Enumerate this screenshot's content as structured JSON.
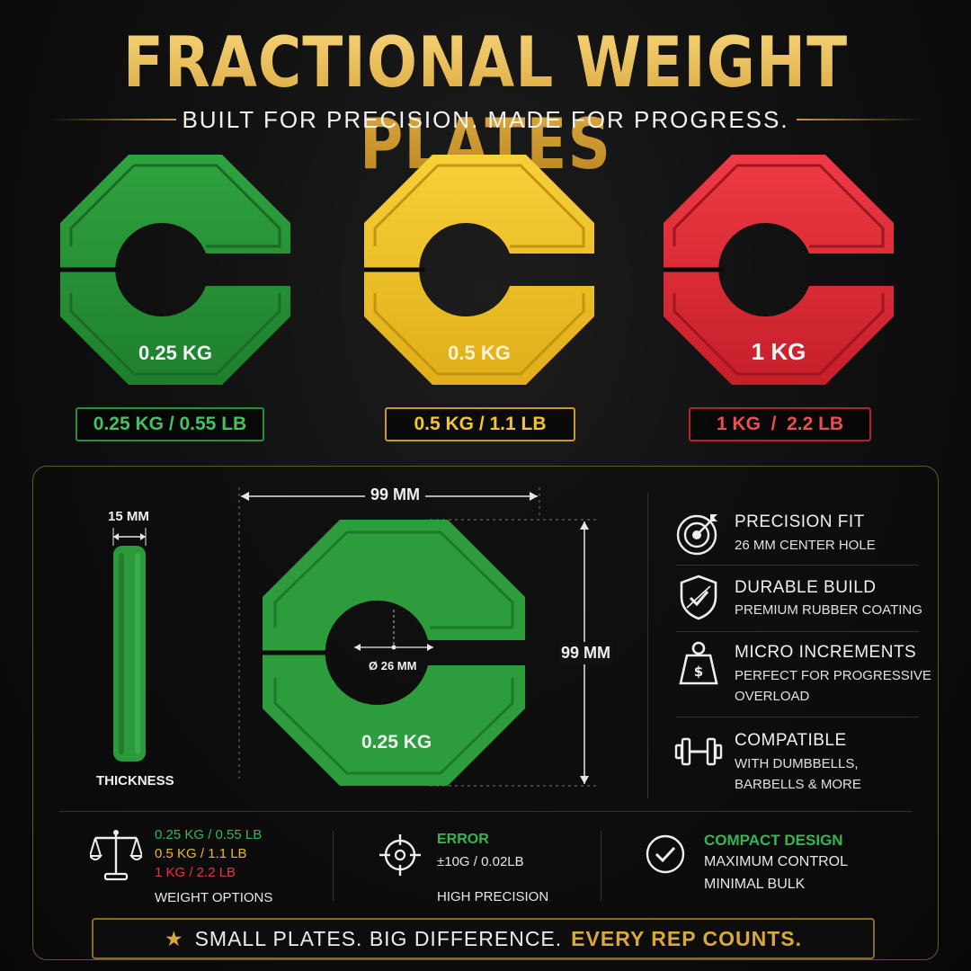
{
  "header": {
    "title": "FRACTIONAL WEIGHT PLATES",
    "subtitle": "BUILT FOR PRECISION. MADE FOR PROGRESS."
  },
  "colors": {
    "gold": "#d9a63c",
    "green": "#2d9a3c",
    "yellow": "#f2c530",
    "red": "#e0303a"
  },
  "plates": [
    {
      "label": "0.25 KG",
      "pill": "0.25 KG / 0.55 LB",
      "color": "green"
    },
    {
      "label": "0.5 KG",
      "pill": "0.5 KG / 1.1 LB",
      "color": "yellow"
    },
    {
      "label": "1 KG",
      "pill": "1 KG  /  2.2 LB",
      "color": "red"
    }
  ],
  "dimensions": {
    "thickness_value": "15 MM",
    "thickness_label": "THICKNESS",
    "width": "99 MM",
    "height": "99 MM",
    "hole": "Ø 26 MM",
    "plate_label": "0.25 KG"
  },
  "features": [
    {
      "icon": "target-icon",
      "title": "PRECISION FIT",
      "sub": "26 MM CENTER HOLE"
    },
    {
      "icon": "shield-icon",
      "title": "DURABLE BUILD",
      "sub": "PREMIUM RUBBER COATING"
    },
    {
      "icon": "weight-icon",
      "title": "MICRO INCREMENTS",
      "sub": "PERFECT FOR PROGRESSIVE",
      "sub2": "OVERLOAD"
    },
    {
      "icon": "dumbbell-icon",
      "title": "COMPATIBLE",
      "sub": "WITH DUMBBELLS,",
      "sub2": "BARBELLS & MORE"
    }
  ],
  "stats": {
    "weights": {
      "line1": "0.25 KG / 0.55 LB",
      "line2": "0.5 KG / 1.1 LB",
      "line3": "1 KG / 2.2 LB",
      "label": "WEIGHT OPTIONS"
    },
    "error": {
      "title": "ERROR",
      "value": "±10G / 0.02LB",
      "label": "HIGH PRECISION"
    },
    "compact": {
      "title": "COMPACT DESIGN",
      "line1": "MAXIMUM CONTROL",
      "line2": "MINIMAL BULK"
    }
  },
  "banner": {
    "main": "SMALL PLATES. BIG DIFFERENCE.",
    "accent": "EVERY REP COUNTS."
  }
}
